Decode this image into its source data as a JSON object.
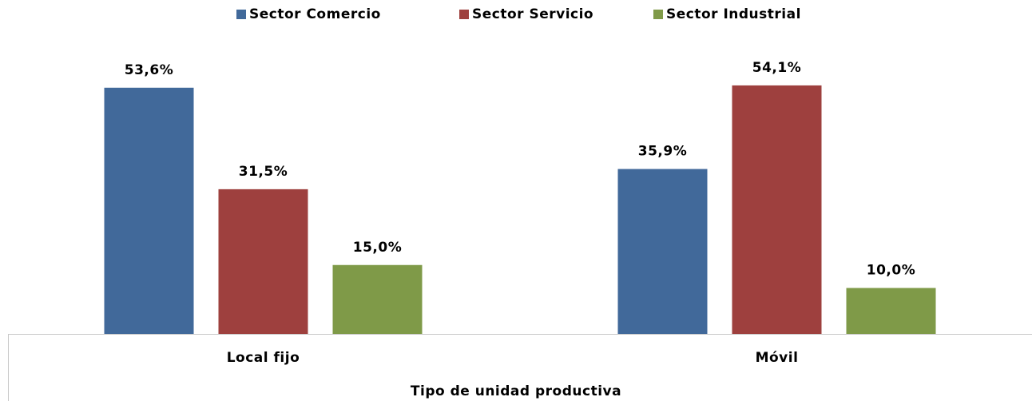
{
  "chart_data": {
    "type": "bar",
    "x_label": "Tipo de unidad productiva",
    "categories": [
      "Local fijo",
      "Móvil"
    ],
    "series": [
      {
        "name": "Sector Comercio",
        "color": "#41699a",
        "values": [
          53.6,
          35.9
        ],
        "value_labels": [
          "53,6%",
          "35,9%"
        ]
      },
      {
        "name": "Sector Servicio",
        "color": "#9e403e",
        "values": [
          31.5,
          54.1
        ],
        "value_labels": [
          "31,5%",
          "54,1%"
        ]
      },
      {
        "name": "Sector Industrial",
        "color": "#7f9a48",
        "values": [
          15.0,
          10.0
        ],
        "value_labels": [
          "15,0%",
          "10,0%"
        ]
      }
    ],
    "legend": "top"
  }
}
